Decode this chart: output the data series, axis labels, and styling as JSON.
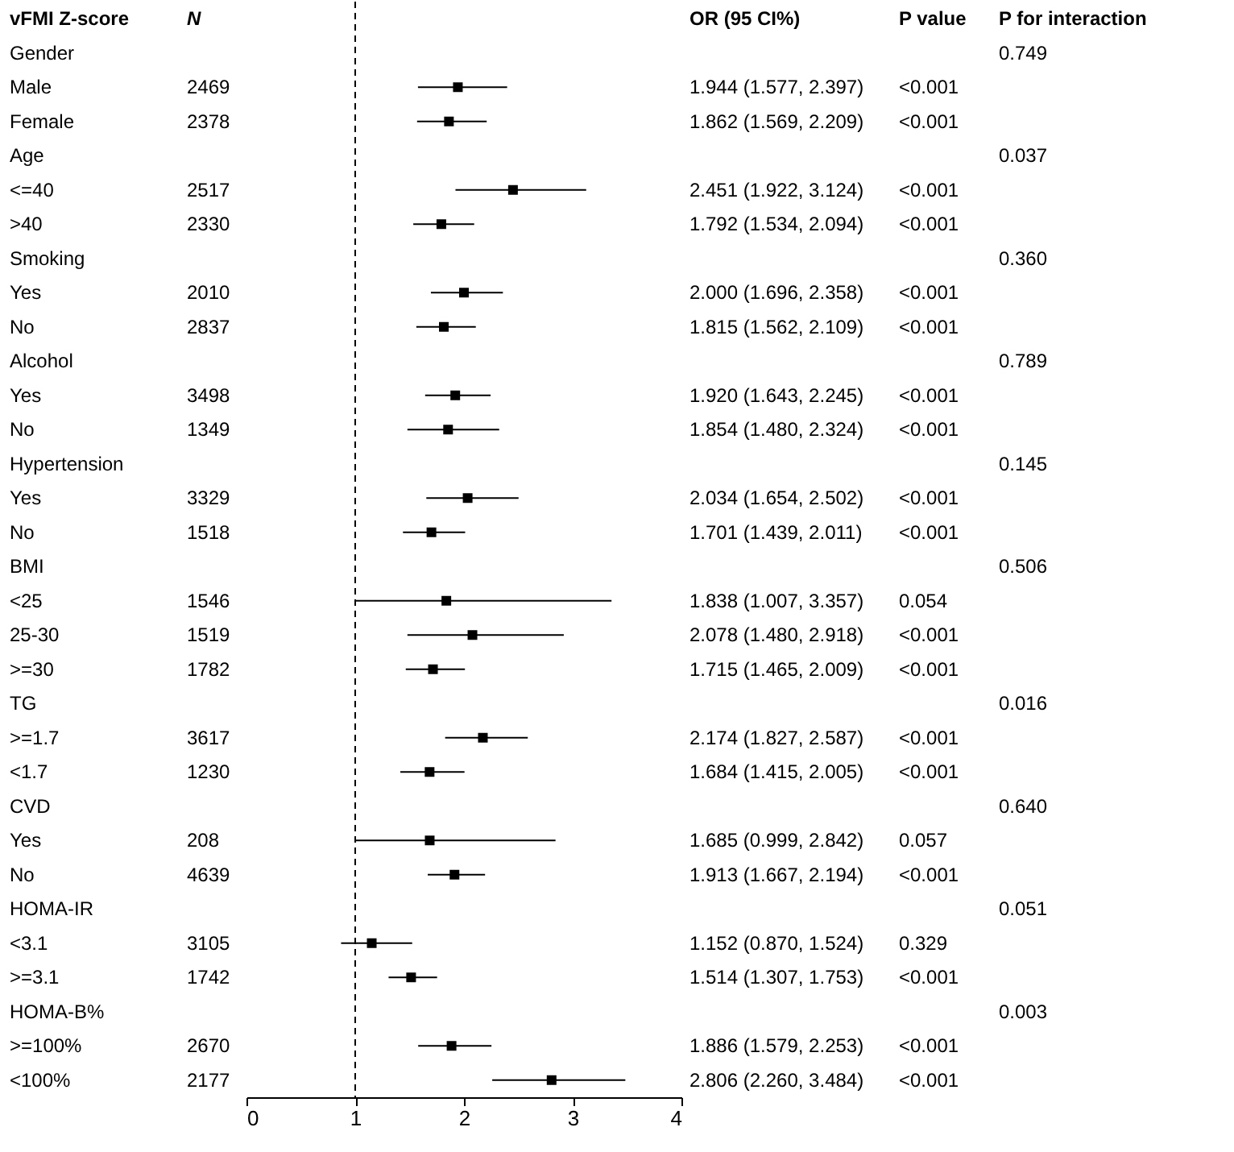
{
  "chart_data": {
    "type": "scatter",
    "orientation": "horizontal",
    "marker": "square",
    "color": "#000000",
    "categories": [
      "Gender",
      "Male",
      "Female",
      "Age",
      "<=40",
      ">40",
      "Smoking",
      "Yes",
      "No",
      "Alcohol",
      "Yes",
      "No",
      "Hypertension",
      "Yes",
      "No",
      "BMI",
      "<25",
      "25-30",
      ">=30",
      "TG",
      ">=1.7",
      "<1.7",
      "CVD",
      "Yes",
      "No",
      "HOMA-IR",
      "<3.1",
      ">=3.1",
      "HOMA-B%",
      ">=100%",
      "<100%"
    ],
    "values": [
      null,
      1.944,
      1.862,
      null,
      2.451,
      1.792,
      null,
      2.0,
      1.815,
      null,
      1.92,
      1.854,
      null,
      2.034,
      1.701,
      null,
      1.838,
      2.078,
      1.715,
      null,
      2.174,
      1.684,
      null,
      1.685,
      1.913,
      null,
      1.152,
      1.514,
      null,
      1.886,
      2.806
    ],
    "errors": [
      null,
      [
        1.577,
        2.397
      ],
      [
        1.569,
        2.209
      ],
      null,
      [
        1.922,
        3.124
      ],
      [
        1.534,
        2.094
      ],
      null,
      [
        1.696,
        2.358
      ],
      [
        1.562,
        2.109
      ],
      null,
      [
        1.643,
        2.245
      ],
      [
        1.48,
        2.324
      ],
      null,
      [
        1.654,
        2.502
      ],
      [
        1.439,
        2.011
      ],
      null,
      [
        1.007,
        3.357
      ],
      [
        1.48,
        2.918
      ],
      [
        1.465,
        2.009
      ],
      null,
      [
        1.827,
        2.587
      ],
      [
        1.415,
        2.005
      ],
      null,
      [
        0.999,
        2.842
      ],
      [
        1.667,
        2.194
      ],
      null,
      [
        0.87,
        1.524
      ],
      [
        1.307,
        1.753
      ],
      null,
      [
        1.579,
        2.253
      ],
      [
        2.26,
        3.484
      ]
    ],
    "value_labels": [
      null,
      "1.944 (1.577, 2.397)",
      "1.862 (1.569, 2.209)",
      null,
      "2.451 (1.922, 3.124)",
      "1.792 (1.534, 2.094)",
      null,
      "2.000 (1.696, 2.358)",
      "1.815 (1.562, 2.109)",
      null,
      "1.920 (1.643, 2.245)",
      "1.854 (1.480, 2.324)",
      null,
      "2.034 (1.654, 2.502)",
      "1.701 (1.439, 2.011)",
      null,
      "1.838 (1.007, 3.357)",
      "2.078 (1.480, 2.918)",
      "1.715 (1.465, 2.009)",
      null,
      "2.174 (1.827, 2.587)",
      "1.684 (1.415, 2.005)",
      null,
      "1.685 (0.999, 2.842)",
      "1.913 (1.667, 2.194)",
      null,
      "1.152 (0.870, 1.524)",
      "1.514 (1.307, 1.753)",
      null,
      "1.886 (1.579, 2.253)",
      "2.806 (2.260, 3.484)"
    ],
    "annotations": [
      "vFMI Z-score",
      "N",
      "OR (95 CI%)",
      "P value",
      "P for interaction",
      "0.749",
      "2469",
      "<0.001",
      "2378",
      "<0.001",
      "0.037",
      "2517",
      "<0.001",
      "2330",
      "<0.001",
      "0.360",
      "2010",
      "<0.001",
      "2837",
      "<0.001",
      "0.789",
      "3498",
      "<0.001",
      "1349",
      "<0.001",
      "0.145",
      "3329",
      "<0.001",
      "1518",
      "<0.001",
      "0.506",
      "1546",
      "0.054",
      "1519",
      "<0.001",
      "1782",
      "<0.001",
      "0.016",
      "3617",
      "<0.001",
      "1230",
      "<0.001",
      "0.640",
      "208",
      "0.057",
      "4639",
      "<0.001",
      "0.051",
      "3105",
      "0.329",
      "1742",
      "<0.001",
      "0.003",
      "2670",
      "<0.001",
      "2177",
      "<0.001"
    ],
    "ref_lines": [
      {
        "axis": "x",
        "value": 1,
        "line_style": "dashed",
        "color": "#000000"
      }
    ],
    "xlim": [
      0,
      4
    ],
    "xticks": [
      0,
      1,
      2,
      3,
      4
    ],
    "tick_labels": "x",
    "grid": false
  }
}
